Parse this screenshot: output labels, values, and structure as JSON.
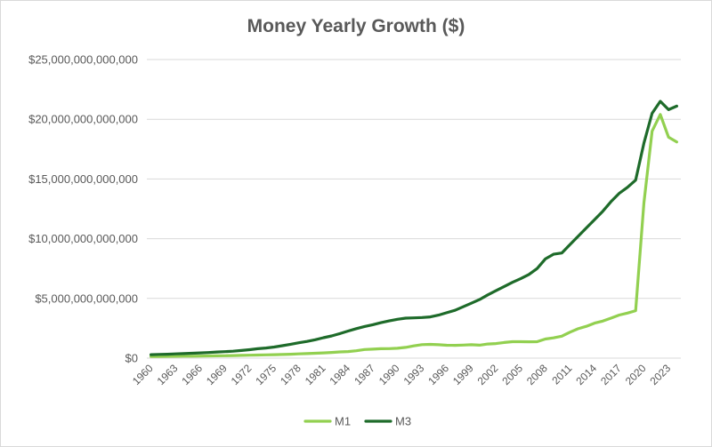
{
  "chart_data": {
    "type": "line",
    "title": "Money Yearly Growth ($)",
    "xlabel": "",
    "ylabel": "",
    "ylim": [
      0,
      25000000000000
    ],
    "y_ticks": [
      "$0",
      "$5,000,000,000,000",
      "$10,000,000,000,000",
      "$15,000,000,000,000",
      "$20,000,000,000,000",
      "$25,000,000,000,000"
    ],
    "x_ticks": [
      "1960",
      "1963",
      "1966",
      "1969",
      "1972",
      "1975",
      "1978",
      "1981",
      "1984",
      "1987",
      "1990",
      "1993",
      "1996",
      "1999",
      "2002",
      "2005",
      "2008",
      "2011",
      "2014",
      "2017",
      "2020",
      "2023"
    ],
    "x": [
      1960,
      1961,
      1962,
      1963,
      1964,
      1965,
      1966,
      1967,
      1968,
      1969,
      1970,
      1971,
      1972,
      1973,
      1974,
      1975,
      1976,
      1977,
      1978,
      1979,
      1980,
      1981,
      1982,
      1983,
      1984,
      1985,
      1986,
      1987,
      1988,
      1989,
      1990,
      1991,
      1992,
      1993,
      1994,
      1995,
      1996,
      1997,
      1998,
      1999,
      2000,
      2001,
      2002,
      2003,
      2004,
      2005,
      2006,
      2007,
      2008,
      2009,
      2010,
      2011,
      2012,
      2013,
      2014,
      2015,
      2016,
      2017,
      2018,
      2019,
      2020,
      2021,
      2022,
      2023,
      2024
    ],
    "grid": true,
    "legend": "bottom",
    "series": [
      {
        "name": "M1",
        "color": "#92d050",
        "values": [
          140000000000,
          145000000000,
          148000000000,
          153000000000,
          160000000000,
          167000000000,
          172000000000,
          183000000000,
          197000000000,
          204000000000,
          214000000000,
          228000000000,
          249000000000,
          263000000000,
          274000000000,
          288000000000,
          306000000000,
          331000000000,
          358000000000,
          383000000000,
          409000000000,
          436000000000,
          475000000000,
          521000000000,
          552000000000,
          620000000000,
          725000000000,
          750000000000,
          787000000000,
          794000000000,
          825000000000,
          897000000000,
          1025000000000,
          1129000000000,
          1150000000000,
          1127000000000,
          1081000000000,
          1073000000000,
          1096000000000,
          1124000000000,
          1088000000000,
          1182000000000,
          1220000000000,
          1306000000000,
          1376000000000,
          1375000000000,
          1367000000000,
          1375000000000,
          1600000000000,
          1700000000000,
          1840000000000,
          2170000000000,
          2460000000000,
          2660000000000,
          2930000000000,
          3100000000000,
          3350000000000,
          3610000000000,
          3770000000000,
          3970000000000,
          13000000000000,
          19000000000000,
          20400000000000,
          18500000000000,
          18100000000000
        ]
      },
      {
        "name": "M3",
        "color": "#1e6b2a",
        "values": [
          290000000000,
          310000000000,
          330000000000,
          360000000000,
          380000000000,
          410000000000,
          440000000000,
          470000000000,
          510000000000,
          540000000000,
          580000000000,
          640000000000,
          710000000000,
          790000000000,
          850000000000,
          930000000000,
          1040000000000,
          1160000000000,
          1290000000000,
          1400000000000,
          1540000000000,
          1710000000000,
          1860000000000,
          2050000000000,
          2270000000000,
          2470000000000,
          2650000000000,
          2800000000000,
          2970000000000,
          3120000000000,
          3250000000000,
          3350000000000,
          3370000000000,
          3400000000000,
          3450000000000,
          3600000000000,
          3800000000000,
          4000000000000,
          4300000000000,
          4600000000000,
          4900000000000,
          5300000000000,
          5650000000000,
          6000000000000,
          6350000000000,
          6650000000000,
          7000000000000,
          7500000000000,
          8300000000000,
          8700000000000,
          8800000000000,
          9500000000000,
          10200000000000,
          10900000000000,
          11600000000000,
          12300000000000,
          13100000000000,
          13800000000000,
          14300000000000,
          14900000000000,
          18000000000000,
          20500000000000,
          21500000000000,
          20800000000000,
          21100000000000
        ]
      }
    ]
  }
}
